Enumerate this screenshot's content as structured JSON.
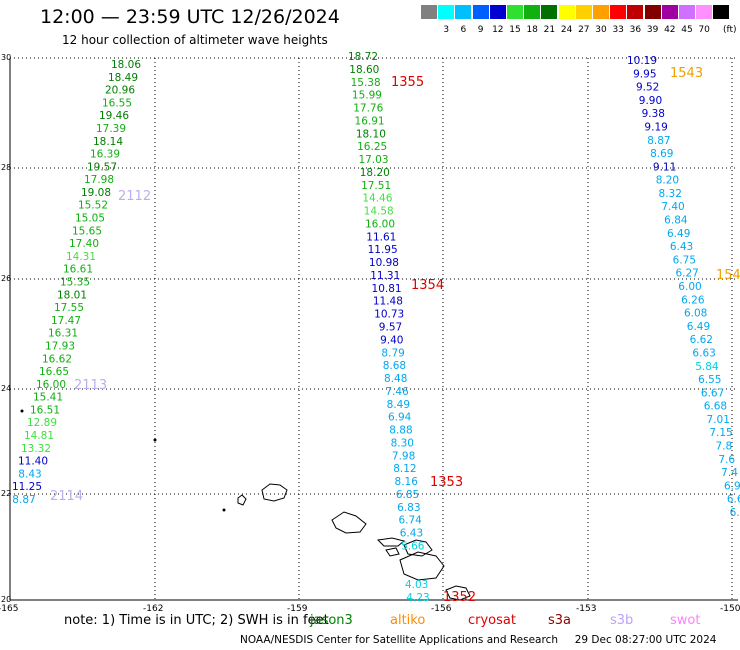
{
  "title": "12:00 — 23:59 UTC 12/26/2024",
  "subtitle": "12 hour collection of altimeter wave heights",
  "color_scale": {
    "unit": "(ft)",
    "bins": [
      {
        "label": "",
        "color": "#808080"
      },
      {
        "label": "3",
        "color": "#00ffff"
      },
      {
        "label": "6",
        "color": "#00bfff"
      },
      {
        "label": "9",
        "color": "#0060ff"
      },
      {
        "label": "12",
        "color": "#0000d0"
      },
      {
        "label": "15",
        "color": "#30e030"
      },
      {
        "label": "18",
        "color": "#10b010"
      },
      {
        "label": "21",
        "color": "#007000"
      },
      {
        "label": "24",
        "color": "#ffff00"
      },
      {
        "label": "27",
        "color": "#ffd000"
      },
      {
        "label": "30",
        "color": "#ffa000"
      },
      {
        "label": "33",
        "color": "#ff0000"
      },
      {
        "label": "36",
        "color": "#c00000"
      },
      {
        "label": "39",
        "color": "#800000"
      },
      {
        "label": "42",
        "color": "#a000a0"
      },
      {
        "label": "45",
        "color": "#d070ff"
      },
      {
        "label": "70",
        "color": "#ff90ff"
      },
      {
        "label": "",
        "color": "#000000"
      }
    ]
  },
  "axes": {
    "lon_labels": [
      "-165",
      "-162",
      "-159",
      "-156",
      "-153",
      "-150"
    ],
    "lat_labels": [
      "30",
      "28",
      "26",
      "24",
      "22",
      "20"
    ]
  },
  "tracks": [
    {
      "id": "2114",
      "name": "2112",
      "satellite": "saral",
      "values": [
        "18.06",
        "18.49",
        "20.96",
        "16.55",
        "19.46",
        "17.39",
        "18.14",
        "16.39",
        "19.57",
        "17.98",
        "19.08",
        "15.52",
        "15.05",
        "15.65",
        "17.40",
        "14.31",
        "16.61",
        "15.35",
        "18.01",
        "17.55",
        "17.47",
        "16.31",
        "17.93",
        "16.62",
        "16.65",
        "16.00",
        "15.41",
        "16.51",
        "12.89",
        "14.81",
        "13.32",
        "11.40",
        "8.43",
        "11.25",
        "8.87"
      ],
      "orbit_labels": [
        "2112",
        "2113",
        "2114"
      ]
    },
    {
      "id": "1355",
      "name": "1355",
      "satellite": "cryosat",
      "values": [
        "18.72",
        "18.60",
        "15.38",
        "15.99",
        "17.76",
        "16.91",
        "18.10",
        "16.25",
        "17.03",
        "18.20",
        "17.51",
        "14.46",
        "14.58",
        "16.00",
        "11.61",
        "11.95",
        "10.98",
        "11.31",
        "10.81",
        "11.48",
        "10.73",
        "9.57",
        "9.40",
        "8.79",
        "8.68",
        "8.48",
        "7.46",
        "8.49",
        "6.94",
        "8.88",
        "8.30",
        "7.98",
        "8.12",
        "8.16",
        "6.85",
        "6.83",
        "6.74",
        "6.43",
        "5.66",
        "",
        "",
        "4.03",
        "4.23"
      ],
      "orbit_labels": [
        "1355",
        "1354",
        "1353",
        "1352"
      ]
    },
    {
      "id": "1543",
      "name": "1543",
      "satellite": "altika",
      "values": [
        "10.19",
        "9.95",
        "9.52",
        "9.90",
        "9.38",
        "9.19",
        "8.87",
        "8.69",
        "9.11",
        "8.20",
        "8.32",
        "7.40",
        "6.84",
        "6.49",
        "6.43",
        "6.75",
        "6.27",
        "6.00",
        "6.26",
        "6.08",
        "6.49",
        "6.62",
        "6.63",
        "5.84",
        "6.55",
        "6.67",
        "6.68",
        "7.01",
        "7.15",
        "7.8",
        "7.6",
        "7.4",
        "6.9",
        "6.6",
        "6.5"
      ],
      "orbit_labels": [
        "1543",
        "154"
      ]
    }
  ],
  "footer": {
    "note": "note:  1) Time is in UTC;  2) SWH is in feet",
    "legend": [
      {
        "label": "jason3",
        "color": "#008000"
      },
      {
        "label": "altiko",
        "color": "#ff8c00"
      },
      {
        "label": "cryosat",
        "color": "#e00000"
      },
      {
        "label": "s3a",
        "color": "#8b0000"
      },
      {
        "label": "s3b",
        "color": "#c0a0ff"
      },
      {
        "label": "swot",
        "color": "#ff80ff"
      }
    ],
    "credit": "NOAA/NESDIS Center for Satellite Applications and Research",
    "timestamp": "29 Dec 08:27:00 UTC 2024"
  }
}
